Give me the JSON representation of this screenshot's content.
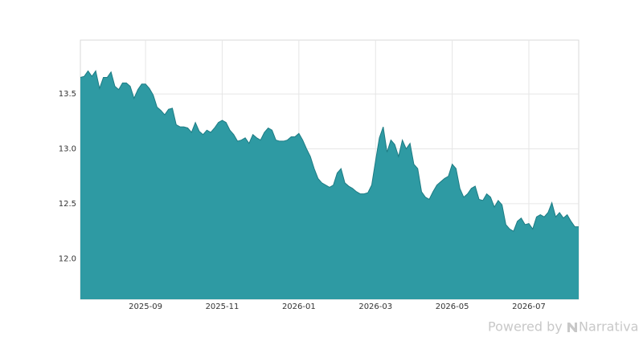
{
  "chart_data": {
    "type": "area",
    "categories": [
      null,
      null,
      null,
      null,
      null,
      null,
      null,
      null,
      null,
      null,
      null,
      null,
      null,
      null,
      null,
      null,
      null,
      "2025-09",
      null,
      null,
      null,
      null,
      null,
      null,
      null,
      null,
      null,
      null,
      null,
      null,
      null,
      null,
      null,
      null,
      null,
      null,
      null,
      "2025-11",
      null,
      null,
      null,
      null,
      null,
      null,
      null,
      null,
      null,
      null,
      null,
      null,
      null,
      null,
      null,
      null,
      null,
      null,
      null,
      "2026-01",
      null,
      null,
      null,
      null,
      null,
      null,
      null,
      null,
      null,
      null,
      null,
      null,
      null,
      null,
      null,
      null,
      null,
      null,
      null,
      "2026-03",
      null,
      null,
      null,
      null,
      null,
      null,
      null,
      null,
      null,
      null,
      null,
      null,
      null,
      null,
      null,
      null,
      null,
      null,
      null,
      "2026-05",
      null,
      null,
      null,
      null,
      null,
      null,
      null,
      null,
      null,
      null,
      null,
      null,
      null,
      null,
      null,
      null,
      null,
      null,
      null,
      "2026-07",
      null,
      null,
      null,
      null,
      null,
      null,
      null,
      null,
      null,
      null,
      null,
      null,
      null
    ],
    "values": [
      13.65,
      13.66,
      13.71,
      13.66,
      13.71,
      13.55,
      13.65,
      13.65,
      13.7,
      13.57,
      13.54,
      13.6,
      13.6,
      13.57,
      13.46,
      13.54,
      13.59,
      13.59,
      13.55,
      13.49,
      13.38,
      13.35,
      13.31,
      13.36,
      13.37,
      13.22,
      13.2,
      13.2,
      13.19,
      13.15,
      13.24,
      13.16,
      13.13,
      13.17,
      13.15,
      13.19,
      13.24,
      13.26,
      13.24,
      13.17,
      13.13,
      13.07,
      13.08,
      13.1,
      13.05,
      13.13,
      13.1,
      13.08,
      13.15,
      13.19,
      13.17,
      13.08,
      13.07,
      13.07,
      13.08,
      13.11,
      13.11,
      13.14,
      13.08,
      13.0,
      12.93,
      12.82,
      12.73,
      12.69,
      12.67,
      12.65,
      12.67,
      12.78,
      12.82,
      12.69,
      12.66,
      12.64,
      12.61,
      12.59,
      12.59,
      12.6,
      12.67,
      12.89,
      13.1,
      13.2,
      12.97,
      13.08,
      13.04,
      12.93,
      13.08,
      13.0,
      13.05,
      12.86,
      12.82,
      12.61,
      12.56,
      12.54,
      12.61,
      12.67,
      12.7,
      12.73,
      12.75,
      12.86,
      12.82,
      12.64,
      12.56,
      12.59,
      12.64,
      12.66,
      12.54,
      12.53,
      12.59,
      12.56,
      12.47,
      12.53,
      12.49,
      12.31,
      12.27,
      12.25,
      12.34,
      12.37,
      12.31,
      12.32,
      12.27,
      12.38,
      12.4,
      12.38,
      12.42,
      12.51,
      12.38,
      12.42,
      12.37,
      12.4,
      12.34,
      12.29,
      12.29
    ],
    "color": "#2e9aa3",
    "line_color": "#1d7c84",
    "ylim": [
      11.63,
      13.99
    ],
    "yticks": [
      {
        "value": 12,
        "label": "12.0"
      },
      12.5,
      {
        "value": 13,
        "label": "13.0"
      },
      13.5
    ],
    "grid": true
  },
  "watermark": {
    "prefix": "Powered by",
    "brand": "Narrativa"
  }
}
